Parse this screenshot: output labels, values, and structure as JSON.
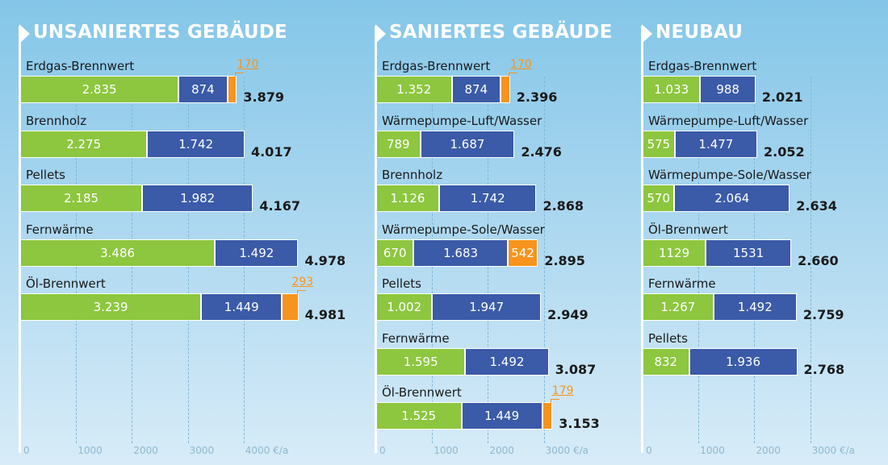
{
  "chart_data": [
    {
      "type": "bar",
      "stacked": true,
      "orientation": "horizontal",
      "title": "UNSANIERTES GEBÄUDE",
      "xlim": [
        0,
        4500
      ],
      "ticks": [
        "0",
        "1000",
        "2000",
        "3000",
        "4000 €/a"
      ],
      "rows": [
        {
          "label": "Erdgas-Brennwert",
          "green": 2835,
          "blue": 874,
          "orange": 170,
          "green_label": "2.835",
          "blue_label": "874",
          "orange_label": "170",
          "total": "3.879"
        },
        {
          "label": "Brennholz",
          "green": 2275,
          "blue": 1742,
          "green_label": "2.275",
          "blue_label": "1.742",
          "total": "4.017"
        },
        {
          "label": "Pellets",
          "green": 2185,
          "blue": 1982,
          "green_label": "2.185",
          "blue_label": "1.982",
          "total": "4.167"
        },
        {
          "label": "Fernwärme",
          "green": 3486,
          "blue": 1492,
          "green_label": "3.486",
          "blue_label": "1.492",
          "total": "4.978"
        },
        {
          "label": "Öl-Brennwert",
          "green": 3239,
          "blue": 1449,
          "orange": 293,
          "green_label": "3.239",
          "blue_label": "1.449",
          "orange_label": "293",
          "total": "4.981"
        }
      ]
    },
    {
      "type": "bar",
      "stacked": true,
      "orientation": "horizontal",
      "title": "SANIERTES GEBÄUDE",
      "xlim": [
        0,
        3500
      ],
      "ticks": [
        "0",
        "1000",
        "2000",
        "3000 €/a"
      ],
      "rows": [
        {
          "label": "Erdgas-Brennwert",
          "green": 1352,
          "blue": 874,
          "orange": 170,
          "green_label": "1.352",
          "blue_label": "874",
          "orange_label": "170",
          "total": "2.396"
        },
        {
          "label": "Wärmepumpe-Luft/Wasser",
          "green": 789,
          "blue": 1687,
          "green_label": "789",
          "blue_label": "1.687",
          "total": "2.476"
        },
        {
          "label": "Brennholz",
          "green": 1126,
          "blue": 1742,
          "green_label": "1.126",
          "blue_label": "1.742",
          "total": "2.868"
        },
        {
          "label": "Wärmepumpe-Sole/Wasser",
          "green": 670,
          "blue": 1683,
          "orange": 542,
          "green_label": "670",
          "blue_label": "1.683",
          "orange_label": "542",
          "orange_inside": true,
          "total": "2.895"
        },
        {
          "label": "Pellets",
          "green": 1002,
          "blue": 1947,
          "green_label": "1.002",
          "blue_label": "1.947",
          "total": "2.949"
        },
        {
          "label": "Fernwärme",
          "green": 1595,
          "blue": 1492,
          "green_label": "1.595",
          "blue_label": "1.492",
          "total": "3.087"
        },
        {
          "label": "Öl-Brennwert",
          "green": 1525,
          "blue": 1449,
          "orange": 179,
          "green_label": "1.525",
          "blue_label": "1.449",
          "orange_label": "179",
          "total": "3.153"
        }
      ]
    },
    {
      "type": "bar",
      "stacked": true,
      "orientation": "horizontal",
      "title": "NEUBAU",
      "xlim": [
        0,
        3500
      ],
      "ticks": [
        "0",
        "1000",
        "2000",
        "3000 €/a"
      ],
      "rows": [
        {
          "label": "Erdgas-Brennwert",
          "green": 1033,
          "blue": 988,
          "green_label": "1.033",
          "blue_label": "988",
          "total": "2.021"
        },
        {
          "label": "Wärmepumpe-Luft/Wasser",
          "green": 575,
          "blue": 1477,
          "green_label": "575",
          "blue_label": "1.477",
          "total": "2.052"
        },
        {
          "label": "Wärmepumpe-Sole/Wasser",
          "green": 570,
          "blue": 2064,
          "green_label": "570",
          "blue_label": "2.064",
          "total": "2.634"
        },
        {
          "label": "Öl-Brennwert",
          "green": 1129,
          "blue": 1531,
          "green_label": "1129",
          "blue_label": "1531",
          "total": "2.660"
        },
        {
          "label": "Fernwärme",
          "green": 1267,
          "blue": 1492,
          "green_label": "1.267",
          "blue_label": "1.492",
          "total": "2.759"
        },
        {
          "label": "Pellets",
          "green": 832,
          "blue": 1936,
          "green_label": "832",
          "blue_label": "1.936",
          "total": "2.768"
        }
      ]
    }
  ],
  "colors": {
    "green": "#8dc63f",
    "blue": "#3b5aa8",
    "orange": "#f7941d"
  }
}
